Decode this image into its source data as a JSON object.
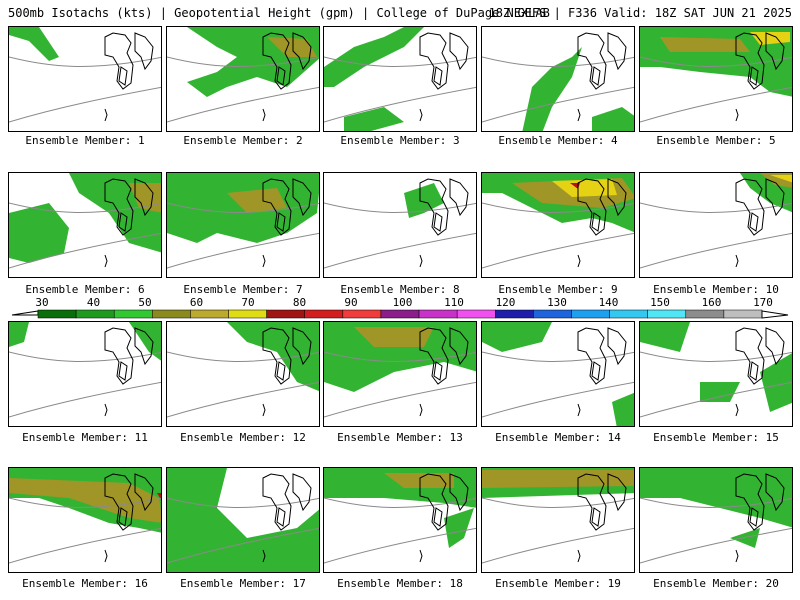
{
  "header": {
    "title_left": "500mb Isotachs (kts) | Geopotential Height (gpm) | College of DuPage NEXLAB",
    "title_right": "18Z GEFS | F336 Valid: 18Z SAT JUN 21 2025"
  },
  "colorbar": {
    "labels": [
      "30",
      "40",
      "50",
      "60",
      "70",
      "80",
      "90",
      "100",
      "110",
      "120",
      "130",
      "140",
      "150",
      "160",
      "170"
    ],
    "colors": [
      "#0a6e0a",
      "#1f9a1f",
      "#32c832",
      "#8a8a1e",
      "#bcaa2e",
      "#e0dc14",
      "#a01414",
      "#d21e1e",
      "#f03c3c",
      "#8c1e8c",
      "#c832c8",
      "#f050f0",
      "#1e1eaa",
      "#1e64dc",
      "#1ea0f0",
      "#32c8f0",
      "#50e6f5",
      "#8c8c8c",
      "#bebebe"
    ]
  },
  "colors": {
    "green_dark": "#0a7d0a",
    "green": "#32b432",
    "green_light": "#50dc50",
    "olive": "#a09628",
    "yellow": "#e6d214",
    "red": "#b41414"
  },
  "panels": [
    {
      "id": 1,
      "caption": "Ensemble Member: 1"
    },
    {
      "id": 2,
      "caption": "Ensemble Member: 2"
    },
    {
      "id": 3,
      "caption": "Ensemble Member: 3"
    },
    {
      "id": 4,
      "caption": "Ensemble Member: 4"
    },
    {
      "id": 5,
      "caption": "Ensemble Member: 5"
    },
    {
      "id": 6,
      "caption": "Ensemble Member: 6"
    },
    {
      "id": 7,
      "caption": "Ensemble Member: 7"
    },
    {
      "id": 8,
      "caption": "Ensemble Member: 8"
    },
    {
      "id": 9,
      "caption": "Ensemble Member: 9"
    },
    {
      "id": 10,
      "caption": "Ensemble Member: 10"
    },
    {
      "id": 11,
      "caption": "Ensemble Member: 11"
    },
    {
      "id": 12,
      "caption": "Ensemble Member: 12"
    },
    {
      "id": 13,
      "caption": "Ensemble Member: 13"
    },
    {
      "id": 14,
      "caption": "Ensemble Member: 14"
    },
    {
      "id": 15,
      "caption": "Ensemble Member: 15"
    },
    {
      "id": 16,
      "caption": "Ensemble Member: 16"
    },
    {
      "id": 17,
      "caption": "Ensemble Member: 17"
    },
    {
      "id": 18,
      "caption": "Ensemble Member: 18"
    },
    {
      "id": 19,
      "caption": "Ensemble Member: 19"
    },
    {
      "id": 20,
      "caption": "Ensemble Member: 20"
    }
  ]
}
